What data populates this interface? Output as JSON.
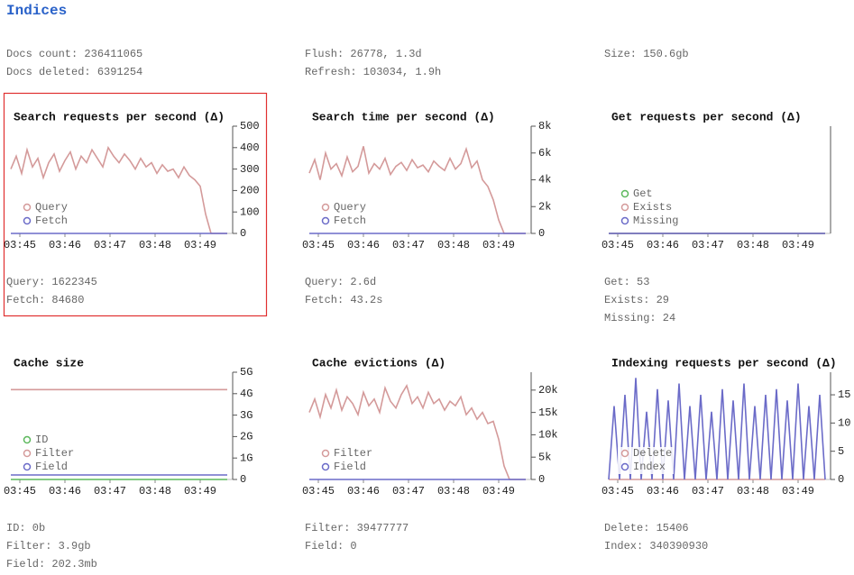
{
  "header": {
    "title": "Indices"
  },
  "summary": [
    [
      "Docs count: 236411065",
      "Docs deleted: 6391254"
    ],
    [
      "Flush: 26778, 1.3d",
      "Refresh: 103034, 1.9h"
    ],
    [
      "Size: 150.6gb"
    ]
  ],
  "chart_data": [
    {
      "type": "line",
      "title": "Search requests per second (Δ)",
      "x": [
        -0.2,
        -0.08,
        0.04,
        0.16,
        0.28,
        0.4,
        0.52,
        0.64,
        0.76,
        0.88,
        1,
        1.12,
        1.24,
        1.36,
        1.48,
        1.6,
        1.72,
        1.84,
        1.96,
        2.08,
        2.2,
        2.32,
        2.44,
        2.56,
        2.68,
        2.8,
        2.92,
        3.04,
        3.16,
        3.28,
        3.4,
        3.52,
        3.64,
        3.76,
        3.88,
        4,
        4.12,
        4.24,
        4.36,
        4.48,
        4.6
      ],
      "series": [
        {
          "name": "Query",
          "color": "#d49a9a",
          "values": [
            300,
            360,
            280,
            390,
            310,
            350,
            260,
            330,
            370,
            290,
            340,
            380,
            300,
            360,
            330,
            390,
            350,
            310,
            400,
            360,
            330,
            370,
            340,
            300,
            350,
            310,
            330,
            280,
            320,
            290,
            300,
            260,
            310,
            270,
            250,
            220,
            90,
            0,
            0,
            0,
            0
          ]
        },
        {
          "name": "Fetch",
          "color": "#6b6bc8",
          "values": [
            0,
            0,
            0,
            0,
            0,
            0,
            0,
            0,
            0,
            0,
            0,
            0,
            0,
            0,
            0,
            0,
            0,
            0,
            0,
            0,
            0,
            0,
            0,
            0,
            0,
            0,
            0,
            0,
            0,
            0,
            0,
            0,
            0,
            0,
            0,
            0,
            0,
            0,
            0,
            0,
            0
          ]
        }
      ],
      "xlim": [
        -0.2,
        4.72
      ],
      "xticks": [
        {
          "value": 0,
          "label": "03:45"
        },
        {
          "value": 1,
          "label": "03:46"
        },
        {
          "value": 2,
          "label": "03:47"
        },
        {
          "value": 3,
          "label": "03:48"
        },
        {
          "value": 4,
          "label": "03:49"
        }
      ],
      "ylim": [
        0,
        500
      ],
      "yticks": [
        0,
        100,
        200,
        300,
        400,
        500
      ],
      "legend": "lower left",
      "stats": [
        "Query: 1622345",
        "Fetch: 84680"
      ]
    },
    {
      "type": "line",
      "title": "Search time per second (Δ)",
      "x": [
        -0.2,
        -0.08,
        0.04,
        0.16,
        0.28,
        0.4,
        0.52,
        0.64,
        0.76,
        0.88,
        1,
        1.12,
        1.24,
        1.36,
        1.48,
        1.6,
        1.72,
        1.84,
        1.96,
        2.08,
        2.2,
        2.32,
        2.44,
        2.56,
        2.68,
        2.8,
        2.92,
        3.04,
        3.16,
        3.28,
        3.4,
        3.52,
        3.64,
        3.76,
        3.88,
        4,
        4.12,
        4.24,
        4.36,
        4.48,
        4.6
      ],
      "series": [
        {
          "name": "Query",
          "color": "#d49a9a",
          "values": [
            4500,
            5500,
            4000,
            6000,
            4800,
            5200,
            4300,
            5700,
            4600,
            5000,
            6500,
            4500,
            5200,
            4800,
            5600,
            4400,
            5000,
            5300,
            4700,
            5500,
            4900,
            5100,
            4600,
            5400,
            5000,
            4700,
            5600,
            4800,
            5200,
            6300,
            4900,
            5400,
            4000,
            3500,
            2500,
            1000,
            0,
            0,
            0,
            0,
            0
          ]
        },
        {
          "name": "Fetch",
          "color": "#6b6bc8",
          "values": [
            0,
            0,
            0,
            0,
            0,
            0,
            0,
            0,
            0,
            0,
            0,
            0,
            0,
            0,
            0,
            0,
            0,
            0,
            0,
            0,
            0,
            0,
            0,
            0,
            0,
            0,
            0,
            0,
            0,
            0,
            0,
            0,
            0,
            0,
            0,
            0,
            0,
            0,
            0,
            0,
            0
          ]
        }
      ],
      "xlim": [
        -0.2,
        4.72
      ],
      "xticks": [
        {
          "value": 0,
          "label": "03:45"
        },
        {
          "value": 1,
          "label": "03:46"
        },
        {
          "value": 2,
          "label": "03:47"
        },
        {
          "value": 3,
          "label": "03:48"
        },
        {
          "value": 4,
          "label": "03:49"
        }
      ],
      "ylim": [
        0,
        8000
      ],
      "yticks": [
        0,
        {
          "value": 2000,
          "label": "2k"
        },
        {
          "value": 4000,
          "label": "4k"
        },
        {
          "value": 6000,
          "label": "6k"
        },
        {
          "value": 8000,
          "label": "8k"
        }
      ],
      "legend": "lower left",
      "stats": [
        "Query: 2.6d",
        "Fetch: 43.2s"
      ]
    },
    {
      "type": "line",
      "title": "Get requests per second (Δ)",
      "x": [
        -0.2,
        4.6
      ],
      "series": [
        {
          "name": "Get",
          "color": "#5cb85c",
          "values": [
            0,
            0
          ]
        },
        {
          "name": "Exists",
          "color": "#d49a9a",
          "values": [
            0,
            0
          ]
        },
        {
          "name": "Missing",
          "color": "#6b6bc8",
          "values": [
            0,
            0
          ]
        }
      ],
      "xlim": [
        -0.2,
        4.72
      ],
      "xticks": [
        {
          "value": 0,
          "label": "03:45"
        },
        {
          "value": 1,
          "label": "03:46"
        },
        {
          "value": 2,
          "label": "03:47"
        },
        {
          "value": 3,
          "label": "03:48"
        },
        {
          "value": 4,
          "label": "03:49"
        }
      ],
      "ylim": [
        0,
        1
      ],
      "yticks": [],
      "legend": "lower left",
      "stats": [
        "Get: 53",
        "Exists: 29",
        "Missing: 24"
      ]
    },
    {
      "type": "line",
      "title": "Cache size",
      "x": [
        -0.2,
        4.6
      ],
      "series": [
        {
          "name": "ID",
          "color": "#5cb85c",
          "values": [
            0,
            0
          ]
        },
        {
          "name": "Filter",
          "color": "#d49a9a",
          "values": [
            4190000000,
            4190000000
          ]
        },
        {
          "name": "Field",
          "color": "#6b6bc8",
          "values": [
            212000000,
            212000000
          ]
        }
      ],
      "xlim": [
        -0.2,
        4.72
      ],
      "xticks": [
        {
          "value": 0,
          "label": "03:45"
        },
        {
          "value": 1,
          "label": "03:46"
        },
        {
          "value": 2,
          "label": "03:47"
        },
        {
          "value": 3,
          "label": "03:48"
        },
        {
          "value": 4,
          "label": "03:49"
        }
      ],
      "ylim": [
        0,
        5000000000
      ],
      "yticks": [
        0,
        {
          "value": 1000000000,
          "label": "1G"
        },
        {
          "value": 2000000000,
          "label": "2G"
        },
        {
          "value": 3000000000,
          "label": "3G"
        },
        {
          "value": 4000000000,
          "label": "4G"
        },
        {
          "value": 5000000000,
          "label": "5G"
        }
      ],
      "legend": "lower left",
      "stats": [
        "ID: 0b",
        "Filter: 3.9gb",
        "Field: 202.3mb"
      ]
    },
    {
      "type": "line",
      "title": "Cache evictions (Δ)",
      "x": [
        -0.2,
        -0.08,
        0.04,
        0.16,
        0.28,
        0.4,
        0.52,
        0.64,
        0.76,
        0.88,
        1,
        1.12,
        1.24,
        1.36,
        1.48,
        1.6,
        1.72,
        1.84,
        1.96,
        2.08,
        2.2,
        2.32,
        2.44,
        2.56,
        2.68,
        2.8,
        2.92,
        3.04,
        3.16,
        3.28,
        3.4,
        3.52,
        3.64,
        3.76,
        3.88,
        4,
        4.12,
        4.24,
        4.36,
        4.48,
        4.6
      ],
      "series": [
        {
          "name": "Filter",
          "color": "#d49a9a",
          "values": [
            15000,
            18000,
            14000,
            19000,
            16000,
            20000,
            15500,
            18500,
            17000,
            14500,
            19500,
            16500,
            18000,
            15000,
            20500,
            17500,
            16000,
            19000,
            21000,
            17000,
            18500,
            16000,
            19500,
            17000,
            18000,
            15500,
            17500,
            16500,
            18500,
            14500,
            16000,
            13500,
            15000,
            12500,
            13000,
            9000,
            3000,
            0,
            0,
            0,
            0
          ]
        },
        {
          "name": "Field",
          "color": "#6b6bc8",
          "values": [
            0,
            0,
            0,
            0,
            0,
            0,
            0,
            0,
            0,
            0,
            0,
            0,
            0,
            0,
            0,
            0,
            0,
            0,
            0,
            0,
            0,
            0,
            0,
            0,
            0,
            0,
            0,
            0,
            0,
            0,
            0,
            0,
            0,
            0,
            0,
            0,
            0,
            0,
            0,
            0,
            0
          ]
        }
      ],
      "xlim": [
        -0.2,
        4.72
      ],
      "xticks": [
        {
          "value": 0,
          "label": "03:45"
        },
        {
          "value": 1,
          "label": "03:46"
        },
        {
          "value": 2,
          "label": "03:47"
        },
        {
          "value": 3,
          "label": "03:48"
        },
        {
          "value": 4,
          "label": "03:49"
        }
      ],
      "ylim": [
        0,
        24000
      ],
      "yticks": [
        0,
        {
          "value": 5000,
          "label": "5k"
        },
        {
          "value": 10000,
          "label": "10k"
        },
        {
          "value": 15000,
          "label": "15k"
        },
        {
          "value": 20000,
          "label": "20k"
        }
      ],
      "legend": "lower left",
      "stats": [
        "Filter: 39477777",
        "Field: 0"
      ]
    },
    {
      "type": "line",
      "title": "Indexing requests per second (Δ)",
      "x": [
        -0.2,
        -0.08,
        0.04,
        0.16,
        0.28,
        0.4,
        0.52,
        0.64,
        0.76,
        0.88,
        1,
        1.12,
        1.24,
        1.36,
        1.48,
        1.6,
        1.72,
        1.84,
        1.96,
        2.08,
        2.2,
        2.32,
        2.44,
        2.56,
        2.68,
        2.8,
        2.92,
        3.04,
        3.16,
        3.28,
        3.4,
        3.52,
        3.64,
        3.76,
        3.88,
        4,
        4.12,
        4.24,
        4.36,
        4.48,
        4.6
      ],
      "series": [
        {
          "name": "Delete",
          "color": "#d49a9a",
          "values": [
            0,
            0,
            0,
            0,
            0,
            0,
            0,
            0,
            0,
            0,
            0,
            0,
            0,
            0,
            0,
            0,
            0,
            0,
            0,
            0,
            0,
            0,
            0,
            0,
            0,
            0,
            0,
            0,
            0,
            0,
            0,
            0,
            0,
            0,
            0,
            0,
            0,
            0,
            0,
            0,
            0
          ]
        },
        {
          "name": "Index",
          "color": "#6b6bc8",
          "values": [
            0,
            13,
            0,
            15,
            0,
            18,
            0,
            12,
            0,
            16,
            0,
            14,
            0,
            17,
            0,
            13,
            0,
            15,
            0,
            12,
            0,
            16,
            0,
            14,
            0,
            17,
            0,
            13,
            0,
            15,
            0,
            16,
            0,
            14,
            0,
            17,
            0,
            13,
            0,
            15,
            0
          ]
        }
      ],
      "xlim": [
        -0.2,
        4.72
      ],
      "xticks": [
        {
          "value": 0,
          "label": "03:45"
        },
        {
          "value": 1,
          "label": "03:46"
        },
        {
          "value": 2,
          "label": "03:47"
        },
        {
          "value": 3,
          "label": "03:48"
        },
        {
          "value": 4,
          "label": "03:49"
        }
      ],
      "ylim": [
        0,
        19
      ],
      "yticks": [
        0,
        5,
        10,
        15
      ],
      "legend": "lower left",
      "stats": [
        "Delete: 15406",
        "Index: 340390930"
      ]
    }
  ]
}
